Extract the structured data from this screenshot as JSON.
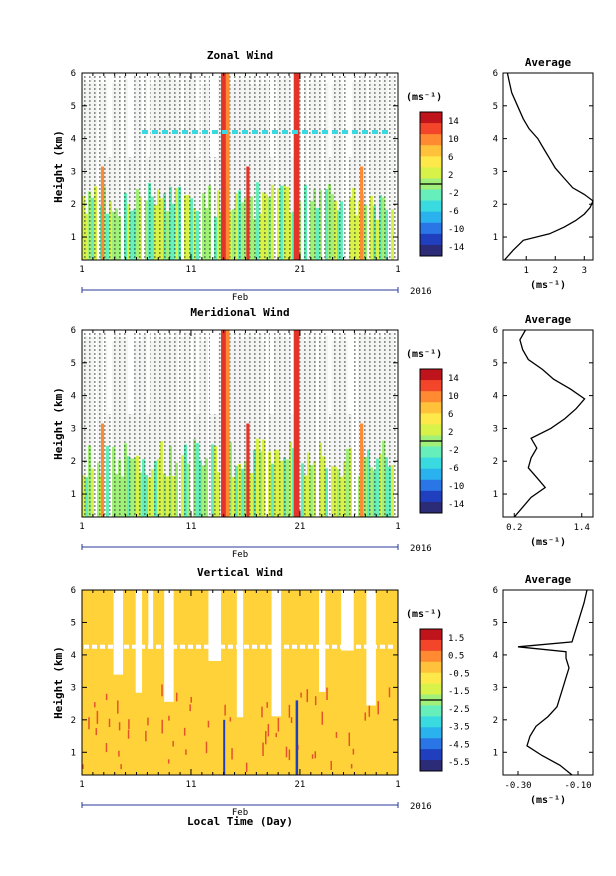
{
  "figure": {
    "xlabel": "Local Time (Day)",
    "month": "Feb",
    "year": "2016",
    "x_tick_labels": [
      "1",
      "11",
      "21",
      "1"
    ],
    "y_tick_labels": [
      "1",
      "2",
      "3",
      "4",
      "5",
      "6"
    ],
    "ylabel": "Height (km)",
    "unit": "(ms⁻¹)",
    "profile_title": "Average"
  },
  "colors": {
    "colormap": [
      "#2b2b78",
      "#1f3fbf",
      "#2a76e6",
      "#2ab2ef",
      "#39dbe0",
      "#66eebb",
      "#a0f07a",
      "#d8f24a",
      "#ffe84a",
      "#ffc23a",
      "#ff8a32",
      "#f2452a",
      "#c0141c"
    ],
    "grid_dots": "#1b2b1b",
    "baseline_vertical": "#ffd23a"
  },
  "chart_data": [
    {
      "type": "heatmap",
      "title": "Zonal Wind",
      "xlabel": "Local Time (Day)",
      "ylabel": "Height (km)",
      "x_range": [
        1,
        30
      ],
      "ylim": [
        0.3,
        6.0
      ],
      "colorbar_ticks": [
        "14",
        "10",
        "6",
        "2",
        "-2",
        "-6",
        "-10",
        "-14"
      ],
      "colorbar_range": [
        -16,
        16
      ],
      "profile": {
        "title": "Average",
        "xlabel": "(ms⁻¹)",
        "x_ticks": [
          "1",
          "2",
          "3"
        ],
        "xlim": [
          0.2,
          3.3
        ],
        "heights": [
          0.3,
          0.6,
          0.9,
          1.1,
          1.3,
          1.5,
          1.7,
          1.9,
          2.1,
          2.3,
          2.5,
          2.8,
          3.1,
          3.4,
          3.7,
          4.0,
          4.3,
          4.6,
          5.0,
          5.4,
          5.8,
          6.0
        ],
        "values": [
          0.25,
          0.55,
          0.9,
          1.8,
          2.3,
          2.7,
          3.0,
          3.2,
          3.3,
          3.0,
          2.6,
          2.3,
          2.0,
          1.8,
          1.6,
          1.4,
          1.1,
          0.9,
          0.7,
          0.5,
          0.4,
          0.35
        ]
      }
    },
    {
      "type": "heatmap",
      "title": "Meridional Wind",
      "xlabel": "Local Time (Day)",
      "ylabel": "Height (km)",
      "x_range": [
        1,
        30
      ],
      "ylim": [
        0.3,
        6.0
      ],
      "colorbar_ticks": [
        "14",
        "10",
        "6",
        "2",
        "-2",
        "-6",
        "-10",
        "-14"
      ],
      "colorbar_range": [
        -16,
        16
      ],
      "profile": {
        "title": "Average",
        "xlabel": "(ms⁻¹)",
        "x_ticks": [
          "0.2",
          "1.4"
        ],
        "xlim": [
          0.0,
          1.6
        ],
        "heights": [
          0.3,
          0.6,
          0.9,
          1.2,
          1.5,
          1.8,
          2.1,
          2.4,
          2.7,
          3.0,
          3.3,
          3.6,
          3.9,
          4.2,
          4.5,
          4.8,
          5.1,
          5.4,
          5.7,
          6.0
        ],
        "values": [
          0.2,
          0.35,
          0.5,
          0.75,
          0.6,
          0.45,
          0.5,
          0.6,
          0.5,
          0.85,
          1.1,
          1.3,
          1.45,
          1.2,
          0.9,
          0.7,
          0.45,
          0.35,
          0.3,
          0.4
        ]
      }
    },
    {
      "type": "heatmap",
      "title": "Vertical Wind",
      "xlabel": "Local Time (Day)",
      "ylabel": "Height (km)",
      "x_range": [
        1,
        30
      ],
      "ylim": [
        0.3,
        6.0
      ],
      "colorbar_ticks": [
        "1.5",
        "0.5",
        "-0.5",
        "-1.5",
        "-2.5",
        "-3.5",
        "-4.5",
        "-5.5"
      ],
      "colorbar_range": [
        -6.0,
        2.0
      ],
      "profile": {
        "title": "Average",
        "xlabel": "(ms⁻¹)",
        "x_ticks": [
          "-0.30",
          "-0.10"
        ],
        "xlim": [
          -0.35,
          -0.05
        ],
        "heights": [
          0.3,
          0.6,
          0.9,
          1.2,
          1.5,
          1.8,
          2.1,
          2.4,
          2.7,
          3.0,
          3.3,
          3.6,
          3.9,
          4.1,
          4.25,
          4.4,
          4.7,
          5.0,
          5.3,
          5.6,
          6.0
        ],
        "values": [
          -0.12,
          -0.16,
          -0.22,
          -0.27,
          -0.26,
          -0.24,
          -0.2,
          -0.17,
          -0.16,
          -0.15,
          -0.14,
          -0.13,
          -0.14,
          -0.14,
          -0.3,
          -0.12,
          -0.11,
          -0.1,
          -0.09,
          -0.08,
          -0.07
        ]
      }
    }
  ]
}
